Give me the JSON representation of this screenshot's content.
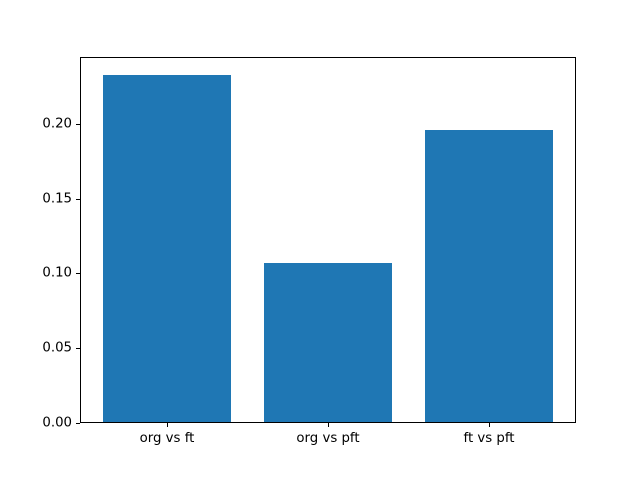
{
  "chart_data": {
    "type": "bar",
    "title": "",
    "xlabel": "",
    "ylabel": "",
    "categories": [
      "org vs ft",
      "org vs pft",
      "ft vs pft"
    ],
    "values": [
      0.233,
      0.107,
      0.196
    ],
    "bar_color": "#1f77b4",
    "axes_edge_color": "#000000",
    "background_color": "#ffffff",
    "ylim": [
      0,
      0.2447
    ],
    "xlim": [
      -0.54,
      2.54
    ],
    "bar_width": 0.8,
    "yticks": [
      0,
      0.05,
      0.1,
      0.15,
      0.2
    ],
    "ytick_labels": [
      "0.00",
      "0.05",
      "0.10",
      "0.15",
      "0.20"
    ],
    "grid": false,
    "legend_position": "none"
  }
}
